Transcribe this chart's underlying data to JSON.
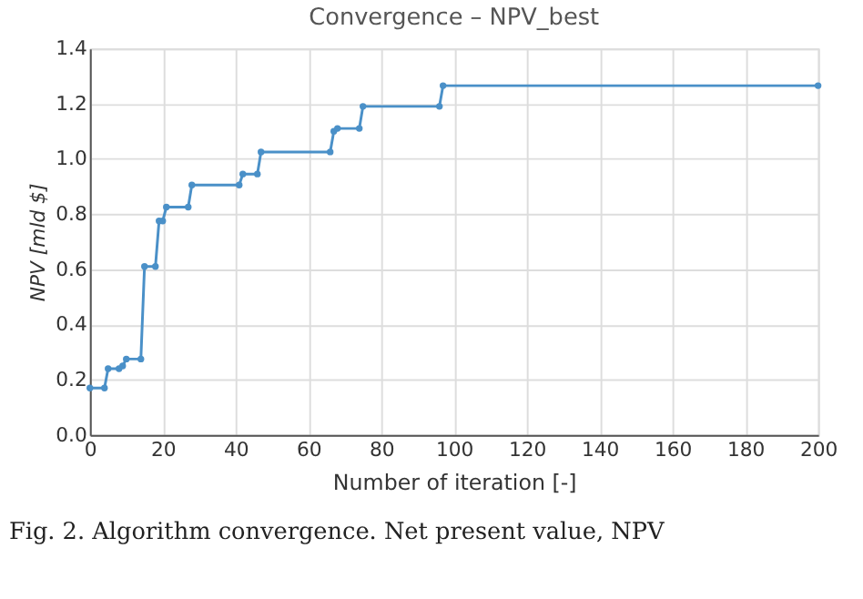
{
  "chart_data": {
    "type": "line",
    "title": "Convergence – NPV_best",
    "xlabel": "Number of iteration [-]",
    "ylabel": "NPV [mld $]",
    "x": [
      0,
      4,
      5,
      8,
      9,
      10,
      14,
      15,
      18,
      19,
      20,
      21,
      27,
      28,
      41,
      42,
      46,
      47,
      66,
      67,
      68,
      74,
      75,
      96,
      97,
      200
    ],
    "series": [
      {
        "color": "#4a90c8",
        "values": [
          0.17,
          0.17,
          0.24,
          0.24,
          0.25,
          0.275,
          0.275,
          0.61,
          0.61,
          0.775,
          0.775,
          0.825,
          0.825,
          0.905,
          0.905,
          0.945,
          0.945,
          1.025,
          1.025,
          1.1,
          1.11,
          1.11,
          1.19,
          1.19,
          1.265,
          1.265
        ]
      }
    ],
    "xlim": [
      0,
      200
    ],
    "xticks": [
      0,
      20,
      40,
      60,
      80,
      100,
      120,
      140,
      160,
      180,
      200
    ],
    "ylim": [
      0,
      1.4
    ],
    "yticks": [
      {
        "value": 0,
        "label": "0.0"
      },
      {
        "value": 0.2,
        "label": "0.2"
      },
      {
        "value": 0.4,
        "label": "0.4"
      },
      {
        "value": 0.6,
        "label": "0.6"
      },
      {
        "value": 0.8,
        "label": "0.8"
      },
      {
        "value": 1.0,
        "label": "1.0"
      },
      {
        "value": 1.2,
        "label": "1.2"
      },
      {
        "value": 1.4,
        "label": "1.4"
      }
    ],
    "grid": true,
    "marker": "circle",
    "line_style": "solid",
    "annotations": [
      "Fig. 2. Algorithm convergence. Net present value, NPV"
    ]
  }
}
